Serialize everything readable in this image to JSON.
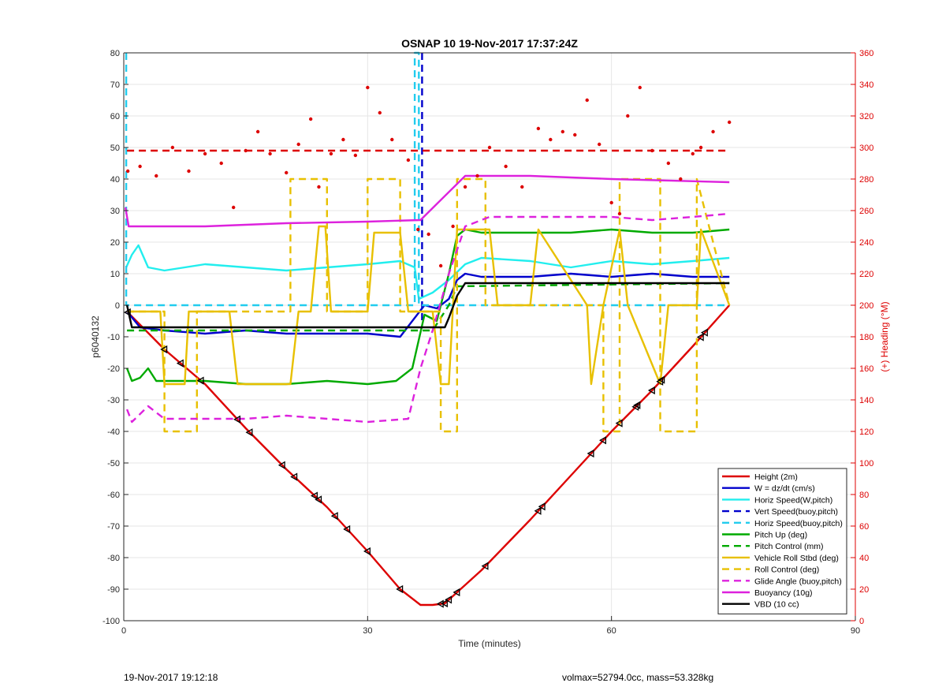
{
  "chart_data": {
    "type": "line",
    "title": "OSNAP 10 19-Nov-2017 17:37:24Z",
    "xlabel": "Time (minutes)",
    "ylabel": "p6040132",
    "y2label": "(+) Heading (°M)",
    "xlim": [
      0,
      90
    ],
    "ylim": [
      -100,
      80
    ],
    "y2lim": [
      0,
      360
    ],
    "xticks": [
      0,
      30,
      60,
      90
    ],
    "yticks": [
      -100,
      -90,
      -80,
      -70,
      -60,
      -50,
      -40,
      -30,
      -20,
      -10,
      0,
      10,
      20,
      30,
      40,
      50,
      60,
      70,
      80
    ],
    "y2ticks": [
      0,
      20,
      40,
      60,
      80,
      100,
      120,
      140,
      160,
      180,
      200,
      220,
      240,
      260,
      280,
      300,
      320,
      340,
      360
    ],
    "grid": true,
    "legend_position": "bottom-right",
    "series": [
      {
        "name": "Height (2m)",
        "color": "#dd0000",
        "style": "solid",
        "x": [
          0.4,
          5,
          10,
          15,
          20,
          25,
          30,
          34,
          36.5,
          38,
          39.5,
          41,
          44,
          50,
          55,
          60,
          65,
          70,
          74.5
        ],
        "y": [
          -2,
          -14,
          -25,
          -39,
          -52,
          -64,
          -78,
          -90,
          -95,
          -95,
          -94.5,
          -91,
          -84,
          -68,
          -54,
          -40,
          -27,
          -13,
          0
        ]
      },
      {
        "name": "W = dz/dt (cm/s)",
        "color": "#0000cc",
        "style": "solid",
        "x": [
          0.4,
          2,
          5,
          10,
          15,
          20,
          25,
          30,
          34,
          35.5,
          37,
          38.5,
          40,
          41,
          42,
          44,
          50,
          55,
          60,
          65,
          70,
          74.5
        ],
        "y": [
          -2,
          -7,
          -8,
          -9,
          -8,
          -9,
          -9,
          -9,
          -10,
          -5,
          0,
          -1,
          2,
          8,
          10,
          9,
          9,
          10,
          9,
          10,
          9,
          9
        ]
      },
      {
        "name": "Horiz Speed(W,pitch)",
        "color": "#22eeee",
        "style": "solid",
        "x": [
          0.3,
          1,
          1.8,
          3,
          5,
          10,
          15,
          20,
          25,
          30,
          34,
          35.8,
          36.3,
          38,
          40,
          42,
          44,
          50,
          55,
          60,
          65,
          70,
          74.5
        ],
        "y": [
          12,
          16,
          19,
          12,
          11,
          13,
          12,
          11,
          12,
          13,
          14,
          12,
          2,
          4,
          8,
          13,
          15,
          14,
          12,
          14,
          13,
          14,
          15
        ]
      },
      {
        "name": "Vert Speed(buoy,pitch)",
        "color": "#0000cc",
        "style": "dashed",
        "x": [
          36.7,
          36.7
        ],
        "y": [
          80,
          -5
        ]
      },
      {
        "name": "Horiz Speed(buoy,pitch)",
        "color": "#22ccee",
        "style": "dashed",
        "x": [
          0.3,
          0.3,
          0.6,
          35.8,
          35.8,
          36.3,
          36.3,
          38,
          42,
          74.5
        ],
        "y": [
          80,
          0,
          0,
          0,
          80,
          80,
          0,
          0,
          0,
          0
        ]
      },
      {
        "name": "Pitch Up (deg)",
        "color": "#00aa00",
        "style": "solid",
        "x": [
          0.4,
          1,
          2,
          3,
          4,
          5,
          10,
          15,
          20,
          25,
          30,
          33.5,
          35.5,
          37,
          38.5,
          40,
          41,
          42,
          44,
          50,
          55,
          60,
          65,
          70,
          74.5
        ],
        "y": [
          -20,
          -24,
          -23,
          -20,
          -24,
          -24,
          -24,
          -25,
          -25,
          -24,
          -25,
          -24,
          -20,
          -3,
          -5,
          10,
          22,
          24,
          23,
          23,
          23,
          24,
          23,
          23,
          24
        ]
      },
      {
        "name": "Pitch Control (mm)",
        "color": "#00aa00",
        "style": "dashed",
        "x": [
          0.4,
          38,
          40,
          41,
          74.5
        ],
        "y": [
          -8,
          -8,
          0,
          6,
          7
        ]
      },
      {
        "name": "Vehicle Roll Stbd (deg)",
        "color": "#e8c000",
        "style": "solid",
        "x": [
          0.4,
          1.5,
          2,
          4.5,
          5,
          7.5,
          8,
          13,
          14,
          20.5,
          21.5,
          23,
          24,
          24.8,
          25.5,
          30,
          30.8,
          34,
          35,
          38,
          39,
          40,
          41,
          42,
          45,
          46,
          50,
          51,
          57,
          57.5,
          59,
          61,
          62,
          66,
          67,
          70.5,
          71,
          74.5
        ],
        "y": [
          -2,
          -2,
          -2,
          -2,
          -25,
          -25,
          -2,
          -2,
          -25,
          -25,
          -2,
          -2,
          25,
          25,
          -2,
          -2,
          23,
          23,
          -2,
          -2,
          -25,
          -25,
          24,
          24,
          24,
          0,
          0,
          24,
          0,
          -25,
          0,
          24,
          0,
          -25,
          0,
          0,
          24,
          0
        ]
      },
      {
        "name": "Roll Control (deg)",
        "color": "#e8c000",
        "style": "dashed",
        "x": [
          0.4,
          5,
          5,
          9,
          9,
          20.5,
          20.5,
          25,
          25,
          30,
          30,
          34,
          34,
          39,
          39,
          41,
          41,
          44.5,
          44.5,
          59,
          59,
          61,
          61,
          66,
          66,
          70.5,
          70.5,
          74.5
        ],
        "y": [
          -2,
          -2,
          -40,
          -40,
          -2,
          -2,
          40,
          40,
          -2,
          -2,
          40,
          40,
          -2,
          -2,
          -40,
          -40,
          40,
          40,
          0,
          0,
          -40,
          -40,
          40,
          40,
          -40,
          -40,
          40,
          0
        ]
      },
      {
        "name": "Glide Angle (buoy,pitch)",
        "color": "#dd22dd",
        "style": "dashed",
        "x": [
          0.4,
          1,
          3,
          5,
          10,
          15,
          20,
          25,
          30,
          35,
          36.5,
          38,
          40,
          42,
          45,
          50,
          55,
          60,
          65,
          70,
          74.5
        ],
        "y": [
          -33,
          -37,
          -32,
          -36,
          -36,
          -36,
          -35,
          -36,
          -37,
          -36,
          -20,
          -8,
          10,
          25,
          28,
          28,
          28,
          28,
          27,
          28,
          29
        ]
      },
      {
        "name": "Buoyancy (10g)",
        "color": "#dd22dd",
        "style": "solid",
        "x": [
          0.2,
          0.6,
          3,
          10,
          20,
          30,
          36.5,
          42,
          50,
          60,
          74.5
        ],
        "y": [
          31,
          25,
          25,
          25,
          26,
          26.5,
          27,
          41,
          41,
          40,
          39
        ]
      },
      {
        "name": "VBD (10 cc)",
        "color": "#000000",
        "style": "solid",
        "x": [
          0.4,
          1,
          5,
          10,
          20,
          30,
          39.5,
          40,
          41,
          42,
          50,
          60,
          74.5
        ],
        "y": [
          0,
          -7,
          -7,
          -7,
          -7,
          -7,
          -7,
          -4,
          3,
          7,
          7,
          7,
          7
        ]
      },
      {
        "name": "",
        "color": "#dd0000",
        "style": "markers",
        "axis": "right",
        "x": [
          0.5,
          2,
          4,
          6,
          8,
          10,
          12,
          13.5,
          15,
          16.5,
          18,
          20,
          21.5,
          23,
          24,
          25.5,
          27,
          28.5,
          30,
          31.5,
          33,
          35,
          36.2,
          37.5,
          39,
          40.5,
          42,
          43.5,
          45,
          47,
          49,
          51,
          52.5,
          54,
          55.5,
          57,
          58.5,
          60,
          61,
          62,
          63.5,
          65,
          67,
          68.5,
          70,
          71,
          72.5,
          74.5
        ],
        "y": [
          285,
          288,
          282,
          300,
          285,
          296,
          290,
          262,
          298,
          310,
          296,
          284,
          302,
          318,
          275,
          296,
          305,
          295,
          338,
          322,
          305,
          292,
          248,
          245,
          225,
          250,
          275,
          282,
          300,
          288,
          275,
          312,
          305,
          310,
          308,
          330,
          302,
          265,
          258,
          320,
          338,
          298,
          290,
          280,
          296,
          300,
          310,
          316
        ]
      },
      {
        "name": "",
        "color": "#dd0000",
        "style": "dashed",
        "axis": "right",
        "x": [
          0.4,
          74.5
        ],
        "y": [
          298,
          298
        ]
      }
    ],
    "markers": {
      "symbol": "triangle-left",
      "series": "Height (2m)",
      "x": [
        0.5,
        5,
        7,
        9.5,
        14,
        15.5,
        19.5,
        21,
        23.5,
        24,
        26,
        27.5,
        30,
        34,
        39,
        39.5,
        40,
        41,
        44.5,
        51,
        51.5,
        57.5,
        59,
        61,
        63,
        63.2,
        65,
        66,
        66.2,
        71,
        71.5
      ]
    }
  },
  "footer": {
    "left": "19-Nov-2017 19:12:18",
    "right": "volmax=52794.0cc, mass=53.328kg"
  }
}
